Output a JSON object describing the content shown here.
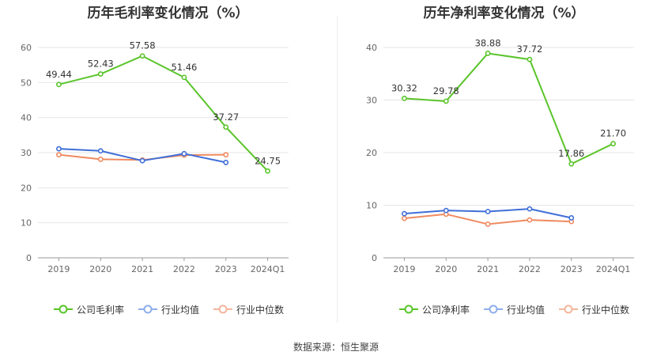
{
  "source": "数据来源：恒生聚源",
  "colors": {
    "company": "#5ac42a",
    "industry_avg": "#3f6fd8",
    "industry_median": "#ef8a5f",
    "legend_avg": "#8eaeea",
    "legend_median": "#f4b69c",
    "grid": "#e6e6e6",
    "axis": "#999999"
  },
  "chart_data": [
    {
      "type": "line",
      "title": "历年毛利率变化情况（%）",
      "categories": [
        "2019",
        "2020",
        "2021",
        "2022",
        "2023",
        "2024Q1"
      ],
      "ylim": [
        0,
        60
      ],
      "yticks": [
        0,
        10,
        20,
        30,
        40,
        50,
        60
      ],
      "series": [
        {
          "name": "公司毛利率",
          "key": "company",
          "values": [
            49.44,
            52.43,
            57.58,
            51.46,
            37.27,
            24.75
          ],
          "labels": [
            "49.44",
            "52.43",
            "57.58",
            "51.46",
            "37.27",
            "24.75"
          ]
        },
        {
          "name": "行业均值",
          "key": "industry_avg",
          "values": [
            31.1,
            30.5,
            27.7,
            29.7,
            27.2,
            null
          ]
        },
        {
          "name": "行业中位数",
          "key": "industry_median",
          "values": [
            29.4,
            28.1,
            27.9,
            29.3,
            29.4,
            null
          ]
        }
      ]
    },
    {
      "type": "line",
      "title": "历年净利率变化情况（%）",
      "categories": [
        "2019",
        "2020",
        "2021",
        "2022",
        "2023",
        "2024Q1"
      ],
      "ylim": [
        0,
        40
      ],
      "yticks": [
        0,
        10,
        20,
        30,
        40
      ],
      "series": [
        {
          "name": "公司净利率",
          "key": "company",
          "values": [
            30.32,
            29.78,
            38.88,
            37.72,
            17.86,
            21.7
          ],
          "labels": [
            "30.32",
            "29.78",
            "38.88",
            "37.72",
            "17.86",
            "21.70"
          ]
        },
        {
          "name": "行业均值",
          "key": "industry_avg",
          "values": [
            8.4,
            9.0,
            8.8,
            9.3,
            7.6,
            null
          ]
        },
        {
          "name": "行业中位数",
          "key": "industry_median",
          "values": [
            7.5,
            8.3,
            6.4,
            7.2,
            6.9,
            null
          ]
        }
      ]
    }
  ]
}
